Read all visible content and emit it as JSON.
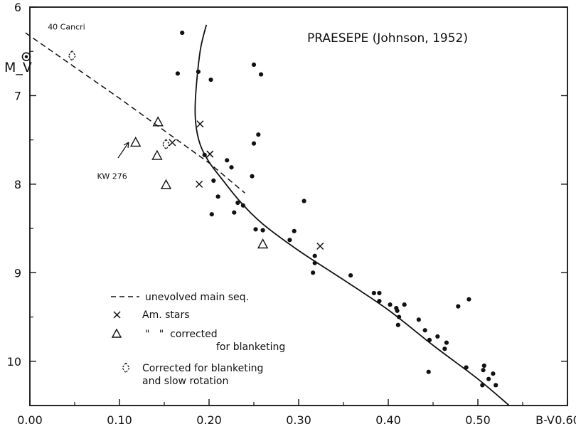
{
  "chart_data": {
    "type": "scatter",
    "title": "PRAESEPE (Johnson, 1952)",
    "xlabel": "B-V",
    "ylabel": "M_V",
    "xlim": [
      0.0,
      0.6
    ],
    "ylim": [
      6,
      10.5
    ],
    "y_inverted": true,
    "x_ticks": [
      "0.00",
      "0.10",
      "0.20",
      "0.30",
      "0.40",
      "0.50",
      "0.60"
    ],
    "y_ticks": [
      "6",
      "7",
      "8",
      "9",
      "10"
    ],
    "grid": false,
    "series": [
      {
        "name": "stars",
        "marker": "dot",
        "points": [
          [
            0.17,
            6.29
          ],
          [
            0.165,
            6.75
          ],
          [
            0.188,
            6.73
          ],
          [
            0.202,
            6.82
          ],
          [
            0.25,
            6.65
          ],
          [
            0.258,
            6.76
          ],
          [
            0.195,
            7.67
          ],
          [
            0.255,
            7.44
          ],
          [
            0.25,
            7.54
          ],
          [
            0.22,
            7.73
          ],
          [
            0.225,
            7.81
          ],
          [
            0.248,
            7.91
          ],
          [
            0.205,
            7.96
          ],
          [
            0.21,
            8.14
          ],
          [
            0.232,
            8.21
          ],
          [
            0.238,
            8.24
          ],
          [
            0.228,
            8.32
          ],
          [
            0.203,
            8.34
          ],
          [
            0.252,
            8.51
          ],
          [
            0.26,
            8.52
          ],
          [
            0.29,
            8.63
          ],
          [
            0.295,
            8.53
          ],
          [
            0.306,
            8.19
          ],
          [
            0.318,
            8.81
          ],
          [
            0.318,
            8.89
          ],
          [
            0.316,
            9.0
          ],
          [
            0.358,
            9.03
          ],
          [
            0.384,
            9.23
          ],
          [
            0.39,
            9.23
          ],
          [
            0.39,
            9.32
          ],
          [
            0.402,
            9.36
          ],
          [
            0.409,
            9.4
          ],
          [
            0.41,
            9.43
          ],
          [
            0.418,
            9.36
          ],
          [
            0.412,
            9.5
          ],
          [
            0.411,
            9.59
          ],
          [
            0.434,
            9.53
          ],
          [
            0.441,
            9.65
          ],
          [
            0.446,
            9.76
          ],
          [
            0.455,
            9.72
          ],
          [
            0.463,
            9.86
          ],
          [
            0.465,
            9.79
          ],
          [
            0.478,
            9.38
          ],
          [
            0.49,
            9.3
          ],
          [
            0.445,
            10.12
          ],
          [
            0.487,
            10.07
          ],
          [
            0.507,
            10.05
          ],
          [
            0.506,
            10.1
          ],
          [
            0.505,
            10.27
          ],
          [
            0.512,
            10.2
          ],
          [
            0.517,
            10.14
          ],
          [
            0.52,
            10.27
          ]
        ]
      },
      {
        "name": "Am. stars",
        "marker": "x",
        "points": [
          [
            0.19,
            7.32
          ],
          [
            0.159,
            7.53
          ],
          [
            0.201,
            7.66
          ],
          [
            0.189,
            8.0
          ],
          [
            0.324,
            8.7
          ]
        ]
      },
      {
        "name": "\"   \"  corrected for blanketing",
        "marker": "triangle",
        "points": [
          [
            0.118,
            7.53
          ],
          [
            0.143,
            7.3
          ],
          [
            0.142,
            7.68
          ],
          [
            0.152,
            8.01
          ],
          [
            0.26,
            8.68
          ]
        ]
      },
      {
        "name": "Corrected for blanketing and slow rotation",
        "marker": "diamond",
        "points": [
          [
            0.047,
            6.55
          ],
          [
            0.152,
            7.55
          ]
        ]
      },
      {
        "name": "sun",
        "marker": "sun",
        "points": [
          [
            -0.004,
            6.56
          ]
        ]
      }
    ],
    "lines": [
      {
        "name": "unevolved main seq.",
        "style": "dashed",
        "points": [
          [
            -0.005,
            6.29
          ],
          [
            0.1,
            7.03
          ],
          [
            0.2,
            7.76
          ],
          [
            0.24,
            8.1
          ]
        ]
      },
      {
        "name": "main sequence fit",
        "style": "solid",
        "points": [
          [
            0.197,
            6.2
          ],
          [
            0.19,
            6.5
          ],
          [
            0.185,
            7.0
          ],
          [
            0.185,
            7.3
          ],
          [
            0.19,
            7.55
          ],
          [
            0.2,
            7.75
          ],
          [
            0.215,
            7.95
          ],
          [
            0.235,
            8.2
          ],
          [
            0.26,
            8.45
          ],
          [
            0.3,
            8.75
          ],
          [
            0.35,
            9.08
          ],
          [
            0.4,
            9.42
          ],
          [
            0.45,
            9.82
          ],
          [
            0.5,
            10.2
          ],
          [
            0.535,
            10.5
          ]
        ]
      }
    ],
    "annotations": [
      {
        "text": "40 Cancri",
        "x": 0.02,
        "y": 6.22
      },
      {
        "text": "KW 276",
        "x": 0.075,
        "y": 7.91
      }
    ],
    "legend": {
      "position": "bottom-left",
      "entries": [
        "unevolved main seq.",
        "Am. stars",
        "\"   \"  corrected",
        "for blanketing",
        "Corrected for blanketing",
        "and slow rotation"
      ]
    }
  }
}
